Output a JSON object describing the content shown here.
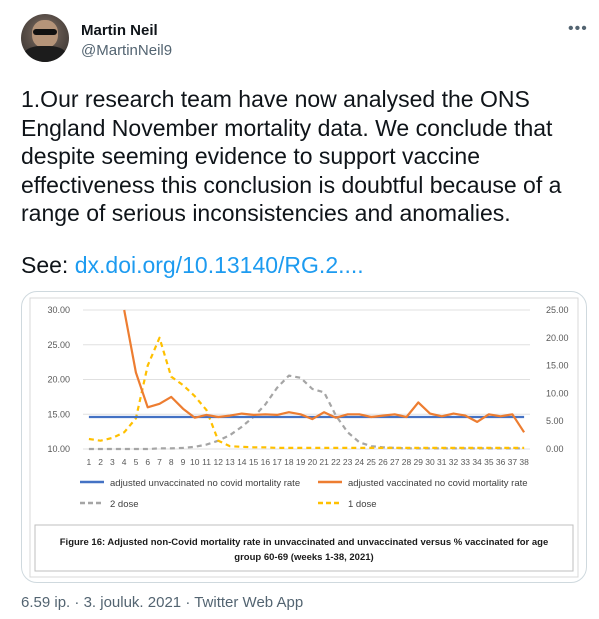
{
  "author": {
    "name": "Martin Neil",
    "handle": "@MartinNeil9"
  },
  "more_label": "•••",
  "tweet": {
    "text": "1.Our research team have now analysed the ONS\nEngland November mortality data. We conclude that\ndespite seeming evidence to support vaccine\neffectiveness this conclusion is doubtful because of a\nrange of serious inconsistencies and anomalies.",
    "see_label": "See: ",
    "link": "dx.doi.org/10.13140/RG.2...."
  },
  "meta": {
    "time": "6.59 ip.",
    "date": "3. jouluk. 2021",
    "source": "Twitter Web App",
    "separator": "·"
  },
  "chart_data": {
    "type": "line",
    "title": "",
    "caption_line1": "Figure 16: Adjusted non-Covid mortality rate in unvaccinated and unvaccinated versus % vaccinated for age",
    "caption_line2": "group 60-69 (weeks 1-38, 2021)",
    "x": [
      1,
      2,
      3,
      4,
      5,
      6,
      7,
      8,
      9,
      10,
      11,
      12,
      13,
      14,
      15,
      16,
      17,
      18,
      19,
      20,
      21,
      22,
      23,
      24,
      25,
      26,
      27,
      28,
      29,
      30,
      31,
      32,
      33,
      34,
      35,
      36,
      37,
      38
    ],
    "ylim_left": [
      10,
      30
    ],
    "yticks_left": [
      "10.00",
      "15.00",
      "20.00",
      "25.00",
      "30.00"
    ],
    "ylim_right": [
      0,
      25
    ],
    "yticks_right": [
      "0.00",
      "5.00",
      "10.00",
      "15.00",
      "20.00",
      "25.00"
    ],
    "grid": true,
    "legend_position": "bottom",
    "series": [
      {
        "name": "adjusted unvaccinated no covid mortality rate",
        "axis": "left",
        "color": "#4472c4",
        "style": "solid",
        "values": [
          14.6,
          14.6,
          14.6,
          14.6,
          14.6,
          14.6,
          14.6,
          14.6,
          14.6,
          14.6,
          14.6,
          14.6,
          14.6,
          14.6,
          14.6,
          14.6,
          14.6,
          14.6,
          14.6,
          14.6,
          14.6,
          14.6,
          14.6,
          14.6,
          14.6,
          14.6,
          14.6,
          14.6,
          14.6,
          14.6,
          14.6,
          14.6,
          14.6,
          14.6,
          14.6,
          14.6,
          14.6,
          14.6
        ]
      },
      {
        "name": "adjusted vaccinated no covid mortality rate",
        "axis": "left",
        "color": "#ed7d31",
        "style": "solid",
        "values": [
          null,
          null,
          null,
          30.0,
          21.0,
          16.0,
          16.5,
          17.5,
          15.8,
          14.5,
          14.9,
          14.6,
          14.8,
          15.1,
          14.9,
          15.0,
          14.9,
          15.3,
          15.0,
          14.3,
          15.3,
          14.5,
          15.0,
          15.0,
          14.6,
          14.8,
          15.0,
          14.6,
          16.7,
          15.1,
          14.7,
          15.1,
          14.8,
          13.9,
          15.0,
          14.7,
          15.0,
          12.4
        ]
      },
      {
        "name": "2 dose",
        "axis": "right",
        "color": "#a5a5a5",
        "style": "dashed",
        "values": [
          0,
          0,
          0,
          0,
          0,
          0,
          0.1,
          0.1,
          0.2,
          0.4,
          0.8,
          1.5,
          2.5,
          4.0,
          5.8,
          8.0,
          11.0,
          13.2,
          12.8,
          10.8,
          10.2,
          6.0,
          3.0,
          1.2,
          0.5,
          0.3,
          0.2,
          0.1,
          0.1,
          0.1,
          0.1,
          0.1,
          0.1,
          0.1,
          0.1,
          0.1,
          0.1,
          0.1
        ]
      },
      {
        "name": "1 dose",
        "axis": "right",
        "color": "#ffc000",
        "style": "dashed",
        "values": [
          1.8,
          1.5,
          2.0,
          3.0,
          5.5,
          15.0,
          20.0,
          13.0,
          11.5,
          9.5,
          7.0,
          1.5,
          0.5,
          0.4,
          0.3,
          0.3,
          0.2,
          0.2,
          0.2,
          0.2,
          0.2,
          0.2,
          0.2,
          0.2,
          0.2,
          0.2,
          0.2,
          0.2,
          0.2,
          0.2,
          0.2,
          0.2,
          0.2,
          0.2,
          0.2,
          0.2,
          0.2,
          0.2
        ]
      }
    ]
  }
}
